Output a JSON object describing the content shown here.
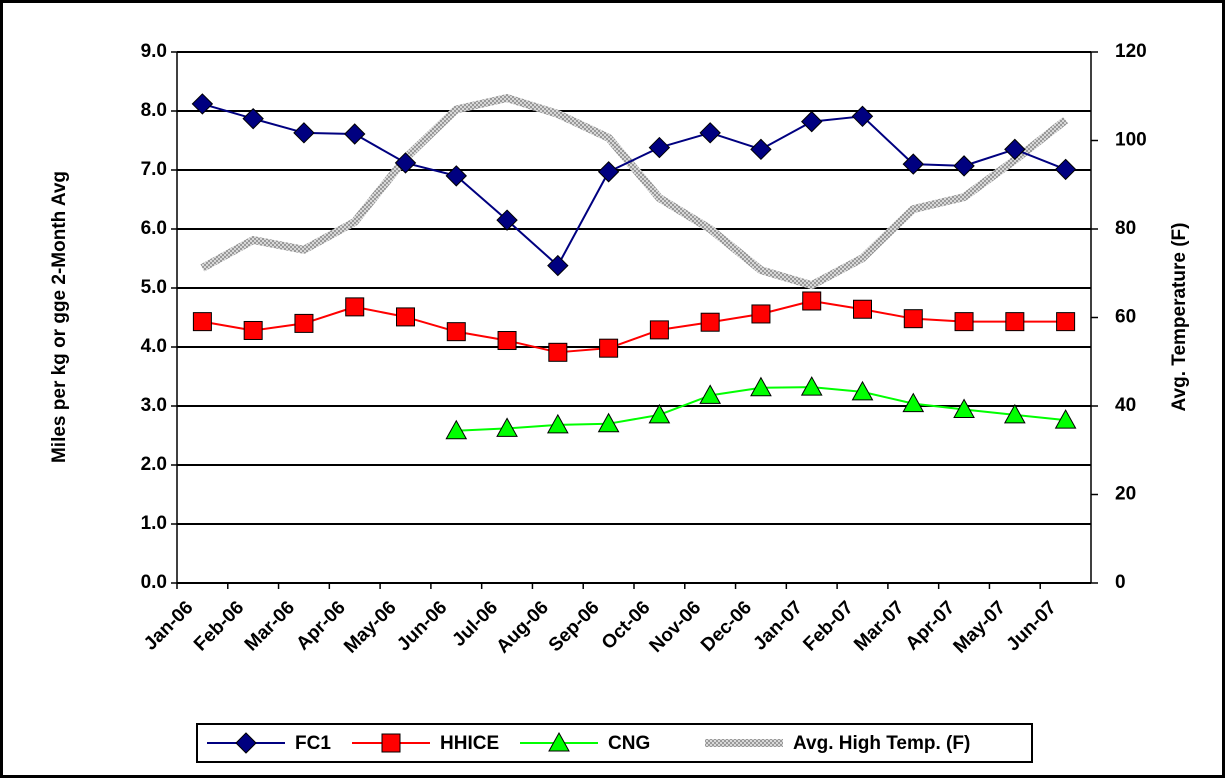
{
  "chart_data": {
    "type": "line",
    "y_label": "Miles per kg or gge 2-Month Avg",
    "y2_label": "Avg. Temperature (F)",
    "categories": [
      "Jan-06",
      "Feb-06",
      "Mar-06",
      "Apr-06",
      "May-06",
      "Jun-06",
      "Jul-06",
      "Aug-06",
      "Sep-06",
      "Oct-06",
      "Nov-06",
      "Dec-06",
      "Jan-07",
      "Feb-07",
      "Mar-07",
      "Apr-07",
      "May-07",
      "Jun-07"
    ],
    "ylim": [
      0,
      9
    ],
    "yticks": [
      {
        "value": 0,
        "label": "0.0"
      },
      {
        "value": 1,
        "label": "1.0"
      },
      {
        "value": 2,
        "label": "2.0"
      },
      {
        "value": 3,
        "label": "3.0"
      },
      {
        "value": 4,
        "label": "4.0"
      },
      {
        "value": 5,
        "label": "5.0"
      },
      {
        "value": 6,
        "label": "6.0"
      },
      {
        "value": 7,
        "label": "7.0"
      },
      {
        "value": 8,
        "label": "8.0"
      },
      {
        "value": 9,
        "label": "9.0"
      }
    ],
    "y2lim": [
      0,
      120
    ],
    "y2ticks": [
      0,
      20,
      40,
      60,
      80,
      100,
      120
    ],
    "grid": true,
    "legend": "bottom",
    "series": [
      {
        "name": "FC1",
        "color": "#000080",
        "marker": "diamond",
        "values": [
          8.12,
          7.87,
          7.63,
          7.61,
          7.12,
          6.9,
          6.15,
          5.38,
          6.97,
          7.38,
          7.63,
          7.35,
          7.82,
          7.91,
          7.1,
          7.07,
          7.35,
          7.01
        ]
      },
      {
        "name": "HHICE",
        "color": "#ff0000",
        "marker": "square",
        "values": [
          4.43,
          4.28,
          4.4,
          4.68,
          4.51,
          4.26,
          4.11,
          3.91,
          3.98,
          4.29,
          4.42,
          4.56,
          4.78,
          4.64,
          4.48,
          4.43,
          4.43,
          4.43
        ]
      },
      {
        "name": "CNG",
        "color": "#00ff00",
        "marker": "triangle",
        "values": [
          null,
          null,
          null,
          null,
          null,
          2.58,
          2.62,
          2.68,
          2.7,
          2.85,
          3.18,
          3.31,
          3.32,
          3.24,
          3.04,
          2.94,
          2.85,
          2.76
        ]
      },
      {
        "name": "Avg. High Temp. (F)",
        "color": "#c0c0c0",
        "axis": "y2",
        "values": [
          71.2,
          77.5,
          75.3,
          81.6,
          96,
          107,
          109.6,
          106,
          100.6,
          87,
          80,
          70.7,
          67.3,
          73.4,
          84.5,
          87.2,
          95.6,
          104.6
        ]
      }
    ]
  }
}
